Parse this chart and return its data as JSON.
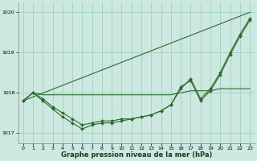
{
  "xlabel": "Graphe pression niveau de la mer (hPa)",
  "ylim": [
    1016.75,
    1020.25
  ],
  "xlim": [
    -0.5,
    23.5
  ],
  "yticks": [
    1017,
    1018,
    1019,
    1020
  ],
  "xticks": [
    0,
    1,
    2,
    3,
    4,
    5,
    6,
    7,
    8,
    9,
    10,
    11,
    12,
    13,
    14,
    15,
    16,
    17,
    18,
    19,
    20,
    21,
    22,
    23
  ],
  "background_color": "#cce8e0",
  "grid_color": "#99ccbb",
  "line_color": "#2d6a2d",
  "lines": [
    {
      "x": [
        0,
        23
      ],
      "y": [
        1017.8,
        1020.0
      ],
      "marker": false,
      "markersize": 0
    },
    {
      "x": [
        0,
        1,
        2,
        3,
        4,
        5,
        6,
        7,
        8,
        9,
        10,
        11,
        12,
        13,
        14,
        15,
        16,
        17,
        18,
        19,
        20,
        21,
        22,
        23
      ],
      "y": [
        1017.8,
        1018.0,
        1017.85,
        1017.65,
        1017.5,
        1017.35,
        1017.2,
        1017.25,
        1017.3,
        1017.3,
        1017.35,
        1017.35,
        1017.4,
        1017.45,
        1017.55,
        1017.7,
        1018.1,
        1018.35,
        1017.85,
        1018.1,
        1018.5,
        1019.0,
        1019.45,
        1019.85
      ],
      "marker": true,
      "markersize": 2.0
    },
    {
      "x": [
        0,
        1,
        2,
        3,
        4,
        5,
        6,
        7,
        8,
        9,
        10,
        11,
        12,
        13,
        14,
        15,
        16,
        17,
        18,
        19,
        20,
        21,
        22,
        23
      ],
      "y": [
        1017.8,
        1018.0,
        1017.8,
        1017.6,
        1017.4,
        1017.25,
        1017.1,
        1017.2,
        1017.25,
        1017.25,
        1017.3,
        1017.35,
        1017.4,
        1017.45,
        1017.55,
        1017.7,
        1018.15,
        1018.3,
        1017.8,
        1018.05,
        1018.45,
        1018.95,
        1019.4,
        1019.8
      ],
      "marker": true,
      "markersize": 2.0
    },
    {
      "x": [
        0,
        1,
        2,
        3,
        4,
        5,
        6,
        7,
        8,
        9,
        10,
        11,
        12,
        13,
        14,
        15,
        16,
        17,
        18,
        19,
        20,
        21,
        22,
        23
      ],
      "y": [
        1017.8,
        1018.0,
        1017.95,
        1017.95,
        1017.95,
        1017.95,
        1017.95,
        1017.95,
        1017.95,
        1017.95,
        1017.95,
        1017.95,
        1017.95,
        1017.95,
        1017.95,
        1017.95,
        1018.0,
        1018.05,
        1018.05,
        1018.05,
        1018.1,
        1018.1,
        1018.1,
        1018.1
      ],
      "marker": false,
      "markersize": 0
    }
  ]
}
